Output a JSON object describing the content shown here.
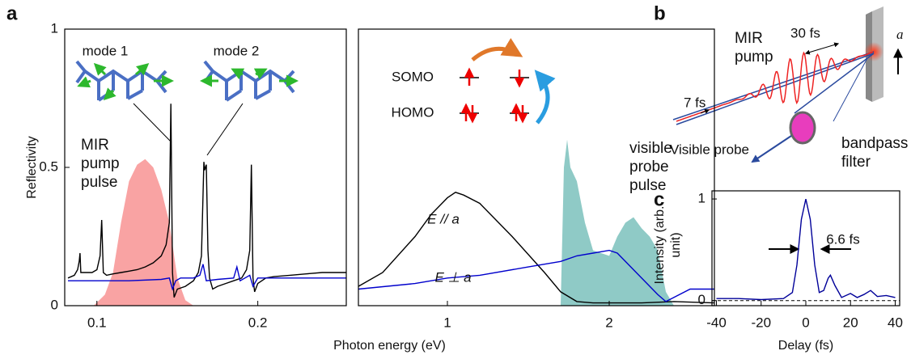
{
  "chart_data": [
    {
      "type": "line",
      "panel": "a",
      "y_label": "Reflectivity",
      "x_label": "Photon energy (eV)",
      "xlim": [
        0.08,
        0.255
      ],
      "ylim": [
        0,
        1
      ],
      "xticks": [
        0.1,
        0.2
      ],
      "yticks": [
        0,
        0.5,
        1
      ],
      "annotations": [
        "mode 1",
        "mode 2"
      ],
      "series": [
        {
          "color": "#000000",
          "x": [
            0.082,
            0.086,
            0.088,
            0.089,
            0.0895,
            0.09,
            0.093,
            0.097,
            0.1,
            0.102,
            0.103,
            0.104,
            0.106,
            0.11,
            0.115,
            0.12,
            0.125,
            0.13,
            0.135,
            0.14,
            0.143,
            0.145,
            0.146,
            0.147,
            0.148,
            0.15,
            0.155,
            0.16,
            0.163,
            0.165,
            0.1665,
            0.167,
            0.168,
            0.169,
            0.17,
            0.172,
            0.175,
            0.18,
            0.185,
            0.19,
            0.193,
            0.195,
            0.196,
            0.197,
            0.198,
            0.2,
            0.205,
            0.21,
            0.22,
            0.23,
            0.24,
            0.255
          ],
          "values": [
            0.1,
            0.11,
            0.13,
            0.16,
            0.19,
            0.12,
            0.12,
            0.12,
            0.13,
            0.18,
            0.31,
            0.12,
            0.11,
            0.115,
            0.12,
            0.125,
            0.13,
            0.14,
            0.155,
            0.18,
            0.22,
            0.3,
            0.73,
            0.12,
            0.03,
            0.06,
            0.07,
            0.09,
            0.12,
            0.18,
            0.52,
            0.49,
            0.51,
            0.2,
            0.1,
            0.06,
            0.07,
            0.08,
            0.09,
            0.1,
            0.13,
            0.2,
            0.51,
            0.1,
            0.05,
            0.08,
            0.1,
            0.105,
            0.11,
            0.115,
            0.12,
            0.12
          ]
        },
        {
          "color": "#0000cc",
          "x": [
            0.082,
            0.1,
            0.12,
            0.14,
            0.145,
            0.147,
            0.149,
            0.152,
            0.16,
            0.164,
            0.166,
            0.168,
            0.175,
            0.185,
            0.187,
            0.189,
            0.195,
            0.197,
            0.2,
            0.22,
            0.255
          ],
          "values": [
            0.09,
            0.09,
            0.09,
            0.095,
            0.1,
            0.06,
            0.09,
            0.1,
            0.1,
            0.11,
            0.15,
            0.09,
            0.095,
            0.1,
            0.14,
            0.09,
            0.11,
            0.07,
            0.1,
            0.1,
            0.1
          ]
        },
        {
          "name": "MIR pump pulse",
          "kind": "area",
          "color": "#f9a3a3",
          "x": [
            0.098,
            0.105,
            0.11,
            0.115,
            0.12,
            0.125,
            0.13,
            0.135,
            0.14,
            0.145,
            0.15,
            0.155,
            0.16
          ],
          "values": [
            0,
            0.04,
            0.12,
            0.3,
            0.45,
            0.51,
            0.53,
            0.5,
            0.42,
            0.3,
            0.1,
            0.02,
            0
          ]
        }
      ]
    },
    {
      "type": "line",
      "xlim": [
        0.45,
        2.65
      ],
      "ylim": [
        0,
        1
      ],
      "xticks": [
        1,
        2
      ],
      "annotations": [
        "SOMO",
        "HOMO"
      ],
      "series": [
        {
          "name": "E // a",
          "color": "#000000",
          "x": [
            0.45,
            0.6,
            0.8,
            0.9,
            1.0,
            1.05,
            1.1,
            1.2,
            1.4,
            1.6,
            1.7,
            1.8,
            1.9,
            2.0,
            2.2,
            2.4,
            2.65
          ],
          "values": [
            0.07,
            0.12,
            0.25,
            0.33,
            0.39,
            0.41,
            0.4,
            0.37,
            0.25,
            0.12,
            0.05,
            0.015,
            0.01,
            0.01,
            0.01,
            0.015,
            0.01
          ]
        },
        {
          "name": "E ⊥ a",
          "color": "#0000cc",
          "x": [
            0.45,
            0.8,
            1.0,
            1.2,
            1.5,
            1.7,
            1.8,
            1.9,
            1.95,
            2.0,
            2.05,
            2.1,
            2.2,
            2.3,
            2.35,
            2.4,
            2.5,
            2.65
          ],
          "values": [
            0.06,
            0.08,
            0.1,
            0.11,
            0.14,
            0.16,
            0.18,
            0.19,
            0.195,
            0.2,
            0.19,
            0.16,
            0.1,
            0.04,
            0.015,
            0.03,
            0.06,
            0.06
          ]
        },
        {
          "name": "visible probe pulse",
          "kind": "area",
          "color": "#8fcac6",
          "x": [
            1.7,
            1.72,
            1.74,
            1.76,
            1.8,
            1.85,
            1.9,
            1.95,
            2.0,
            2.05,
            2.1,
            2.15,
            2.2,
            2.25,
            2.3,
            2.35,
            2.4
          ],
          "values": [
            0,
            0.5,
            0.6,
            0.5,
            0.45,
            0.3,
            0.2,
            0.19,
            0.18,
            0.25,
            0.3,
            0.32,
            0.28,
            0.25,
            0.2,
            0.05,
            0
          ]
        }
      ]
    },
    {
      "type": "line",
      "panel": "c",
      "y_label": "Intensity (arb. unit)",
      "x_label": "Delay (fs)",
      "xlim": [
        -42,
        42
      ],
      "ylim": [
        -0.05,
        1.08
      ],
      "xticks": [
        -40,
        -20,
        0,
        20,
        40
      ],
      "yticks": [
        0,
        1
      ],
      "annotations": [
        "6.6 fs"
      ],
      "series": [
        {
          "color": "#000099",
          "x": [
            -40,
            -30,
            -20,
            -10,
            -6,
            -4,
            -2,
            0,
            2,
            4,
            6,
            8,
            10,
            11,
            13,
            16,
            20,
            23,
            26,
            29,
            32,
            36,
            40
          ],
          "values": [
            0.02,
            0.02,
            0.01,
            0.02,
            0.08,
            0.35,
            0.8,
            1.0,
            0.8,
            0.35,
            0.08,
            0.1,
            0.22,
            0.25,
            0.15,
            0.03,
            0.07,
            0.03,
            0.06,
            0.1,
            0.04,
            0.05,
            0.03
          ]
        }
      ]
    }
  ],
  "diagram": {
    "panel": "b",
    "mir_pump": "MIR pump",
    "mir_duration": "30 fs",
    "probe_duration": "7 fs",
    "probe": "Visible probe",
    "filter": "bandpass filter",
    "axis": "a"
  }
}
